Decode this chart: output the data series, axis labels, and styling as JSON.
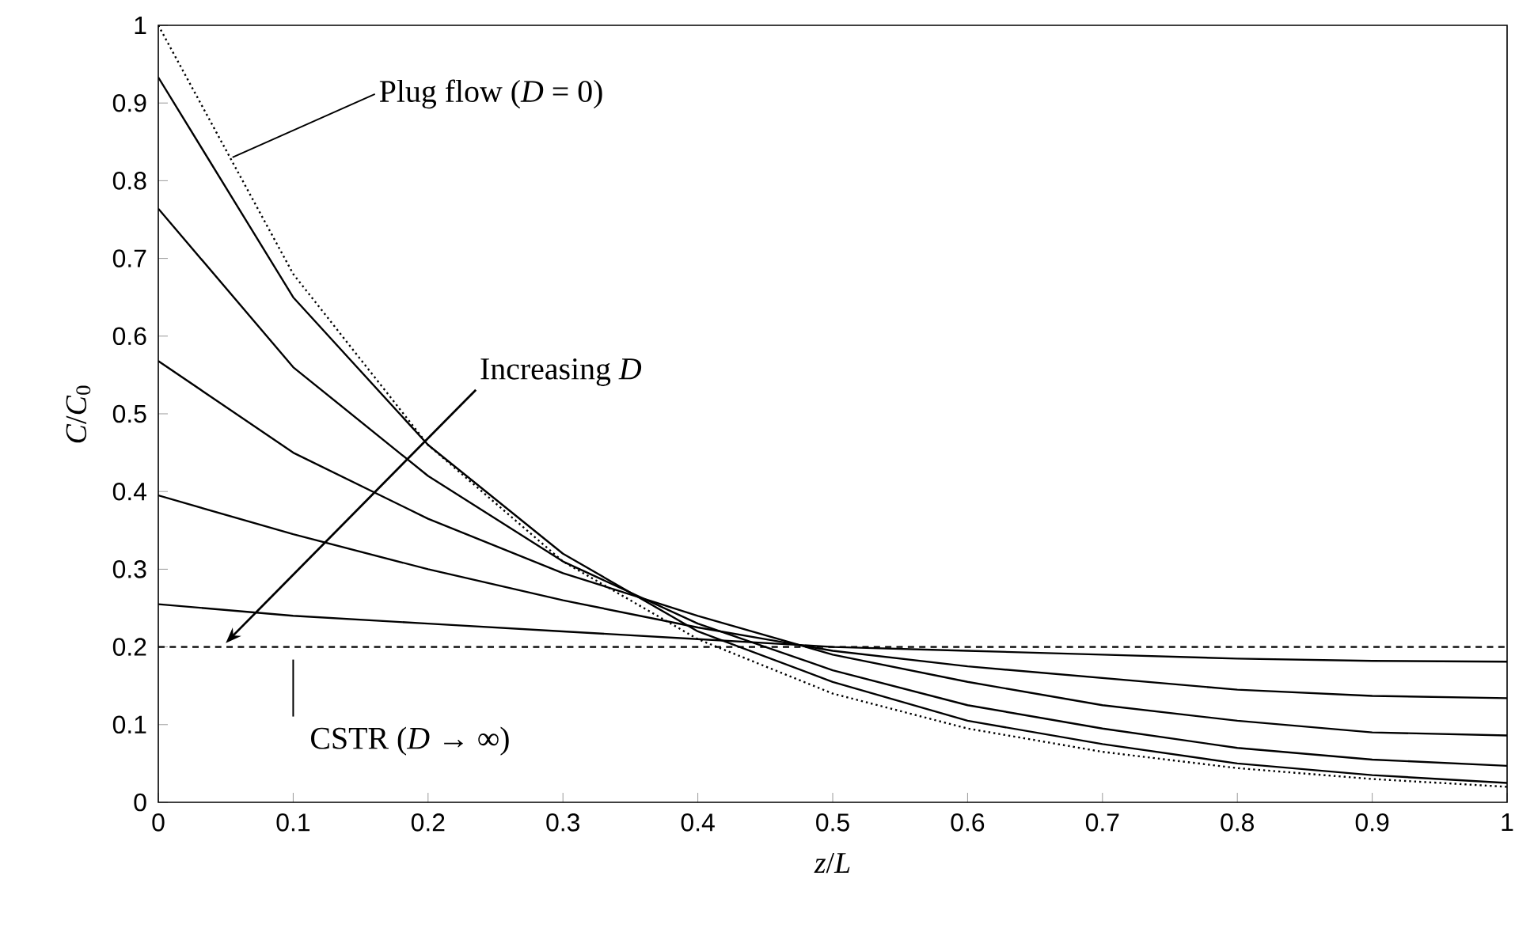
{
  "chart_data": {
    "type": "line",
    "xlabel": "*z*/*L*",
    "ylabel": "*C*/*C*$_{0}$",
    "x": [
      0,
      0.1,
      0.2,
      0.3,
      0.4,
      0.5,
      0.6,
      0.7,
      0.8,
      0.9,
      1
    ],
    "xlim": [
      0,
      1
    ],
    "ylim": [
      0,
      1
    ],
    "xticks": [
      0,
      0.1,
      0.2,
      0.3,
      0.4,
      0.5,
      0.6,
      0.7,
      0.8,
      0.9,
      1
    ],
    "yticks": [
      0,
      0.1,
      0.2,
      0.3,
      0.4,
      0.5,
      0.6,
      0.7,
      0.8,
      0.9,
      1
    ],
    "grid": false,
    "line_style": "solid",
    "series": [
      {
        "color": "#000000",
        "line_style": "dotted",
        "values": [
          1,
          0.68,
          0.46,
          0.31,
          0.21,
          0.14,
          0.095,
          0.065,
          0.044,
          0.03,
          0.02
        ]
      },
      {
        "color": "#000000",
        "values": [
          0.933,
          0.65,
          0.46,
          0.32,
          0.22,
          0.155,
          0.105,
          0.075,
          0.05,
          0.035,
          0.025
        ]
      },
      {
        "color": "#000000",
        "values": [
          0.764,
          0.56,
          0.42,
          0.31,
          0.23,
          0.17,
          0.125,
          0.095,
          0.07,
          0.055,
          0.047
        ]
      },
      {
        "color": "#000000",
        "values": [
          0.568,
          0.45,
          0.365,
          0.295,
          0.24,
          0.19,
          0.155,
          0.125,
          0.105,
          0.09,
          0.086
        ]
      },
      {
        "color": "#000000",
        "values": [
          0.395,
          0.345,
          0.3,
          0.26,
          0.225,
          0.195,
          0.175,
          0.16,
          0.145,
          0.137,
          0.134
        ]
      },
      {
        "color": "#000000",
        "values": [
          0.255,
          0.24,
          0.23,
          0.22,
          0.21,
          0.2,
          0.195,
          0.19,
          0.185,
          0.182,
          0.181
        ]
      }
    ],
    "ref_lines": [
      {
        "axis": "y",
        "value": 0.2,
        "label": "CSTR (*D* → ∞)",
        "line_style": "dashed",
        "color": "#000000"
      }
    ],
    "annotations": [
      {
        "text": "Plug flow (*D* = 0)",
        "x": 0.055,
        "y": 0.83
      },
      {
        "text": "Increasing *D*",
        "x": 0.05,
        "y": 0.205
      }
    ]
  }
}
